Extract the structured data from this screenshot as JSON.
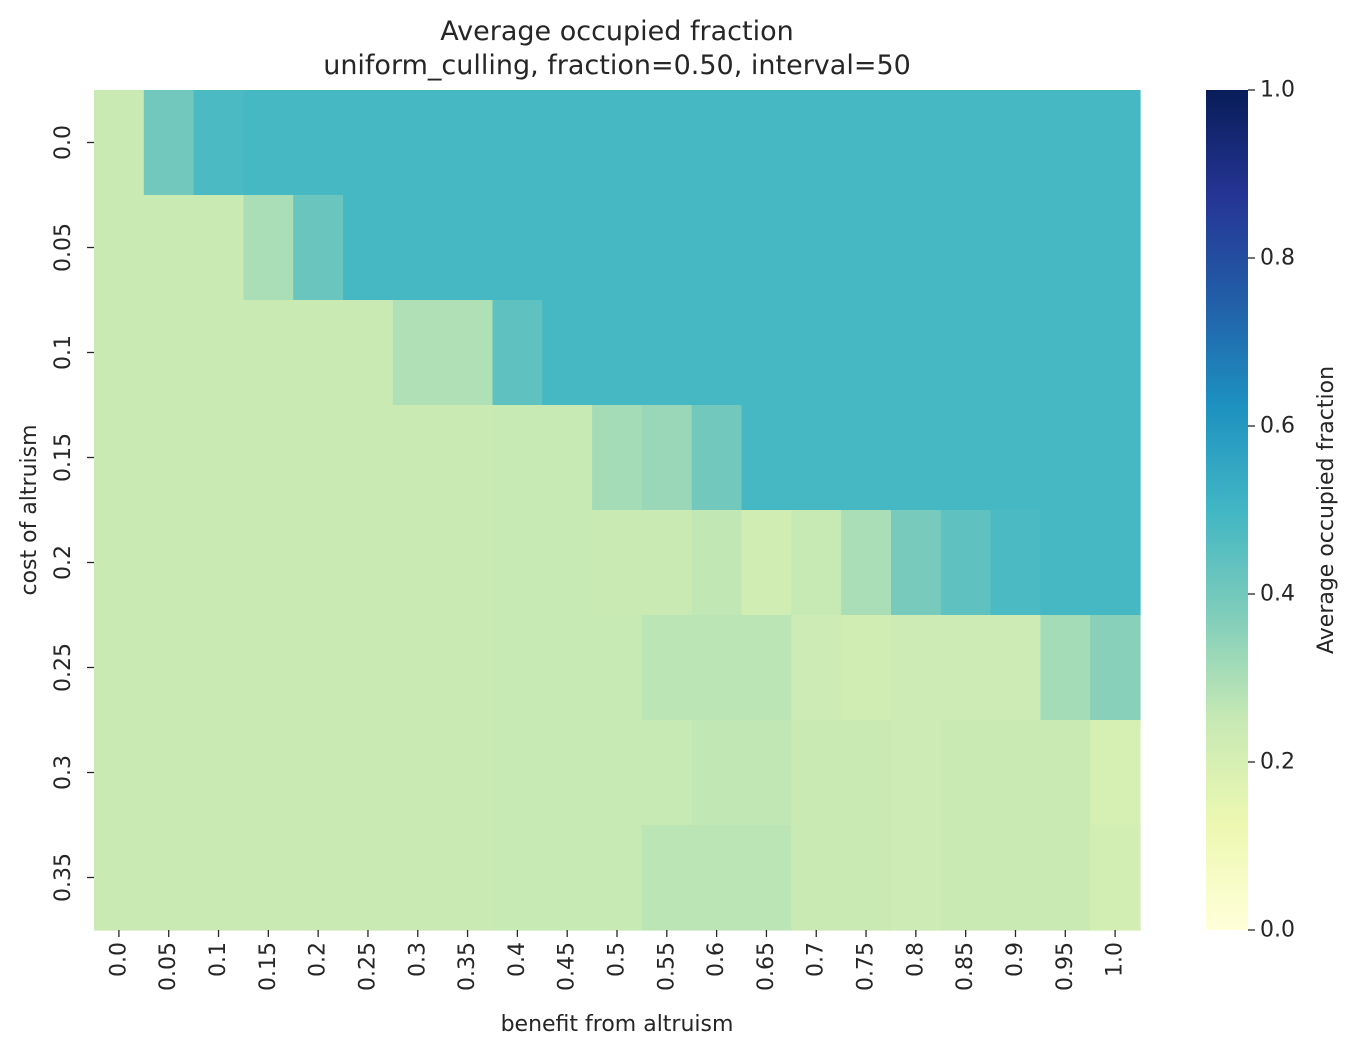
{
  "chart_data": {
    "type": "heatmap",
    "title": "Average occupied fraction",
    "subtitle": "uniform_culling, fraction=0.50, interval=50",
    "xlabel": "benefit from altruism",
    "ylabel": "cost of altruism",
    "x_categories": [
      "0.0",
      "0.05",
      "0.1",
      "0.15",
      "0.2",
      "0.25",
      "0.3",
      "0.35",
      "0.4",
      "0.45",
      "0.5",
      "0.55",
      "0.6",
      "0.65",
      "0.7",
      "0.75",
      "0.8",
      "0.85",
      "0.9",
      "0.95",
      "1.0"
    ],
    "y_categories": [
      "0.0",
      "0.05",
      "0.1",
      "0.15",
      "0.2",
      "0.25",
      "0.3",
      "0.35"
    ],
    "values": [
      [
        0.24,
        0.4,
        0.48,
        0.49,
        0.49,
        0.49,
        0.49,
        0.49,
        0.49,
        0.49,
        0.49,
        0.49,
        0.49,
        0.49,
        0.49,
        0.49,
        0.49,
        0.49,
        0.49,
        0.49,
        0.49
      ],
      [
        0.24,
        0.24,
        0.24,
        0.3,
        0.42,
        0.49,
        0.49,
        0.49,
        0.49,
        0.49,
        0.49,
        0.49,
        0.49,
        0.49,
        0.49,
        0.49,
        0.49,
        0.49,
        0.49,
        0.49,
        0.49
      ],
      [
        0.24,
        0.24,
        0.24,
        0.24,
        0.24,
        0.24,
        0.29,
        0.29,
        0.44,
        0.49,
        0.49,
        0.49,
        0.49,
        0.49,
        0.49,
        0.49,
        0.49,
        0.49,
        0.49,
        0.49,
        0.49
      ],
      [
        0.24,
        0.24,
        0.24,
        0.24,
        0.24,
        0.24,
        0.24,
        0.24,
        0.25,
        0.25,
        0.31,
        0.33,
        0.4,
        0.49,
        0.49,
        0.49,
        0.49,
        0.49,
        0.49,
        0.49,
        0.49
      ],
      [
        0.24,
        0.24,
        0.24,
        0.24,
        0.24,
        0.24,
        0.24,
        0.24,
        0.25,
        0.25,
        0.24,
        0.24,
        0.26,
        0.22,
        0.25,
        0.3,
        0.39,
        0.44,
        0.48,
        0.49,
        0.49
      ],
      [
        0.24,
        0.24,
        0.24,
        0.24,
        0.24,
        0.24,
        0.24,
        0.24,
        0.25,
        0.25,
        0.25,
        0.27,
        0.27,
        0.27,
        0.23,
        0.22,
        0.23,
        0.23,
        0.23,
        0.31,
        0.36
      ],
      [
        0.24,
        0.24,
        0.24,
        0.24,
        0.24,
        0.24,
        0.24,
        0.24,
        0.25,
        0.25,
        0.25,
        0.25,
        0.26,
        0.26,
        0.24,
        0.24,
        0.23,
        0.24,
        0.24,
        0.24,
        0.2
      ],
      [
        0.24,
        0.24,
        0.24,
        0.24,
        0.24,
        0.24,
        0.24,
        0.24,
        0.25,
        0.25,
        0.25,
        0.27,
        0.27,
        0.27,
        0.24,
        0.24,
        0.23,
        0.24,
        0.24,
        0.24,
        0.21
      ]
    ],
    "colormap": "YlGnBu",
    "vmin": 0.0,
    "vmax": 1.0,
    "colorbar": {
      "label": "Average occupied fraction",
      "ticks": [
        "0.0",
        "0.2",
        "0.4",
        "0.6",
        "0.8",
        "1.0"
      ]
    },
    "colormap_stops": [
      "#ffffd9",
      "#edf8b1",
      "#c7e9b4",
      "#7fcdbb",
      "#41b6c4",
      "#1d91c0",
      "#225ea8",
      "#253494",
      "#081d58"
    ]
  }
}
